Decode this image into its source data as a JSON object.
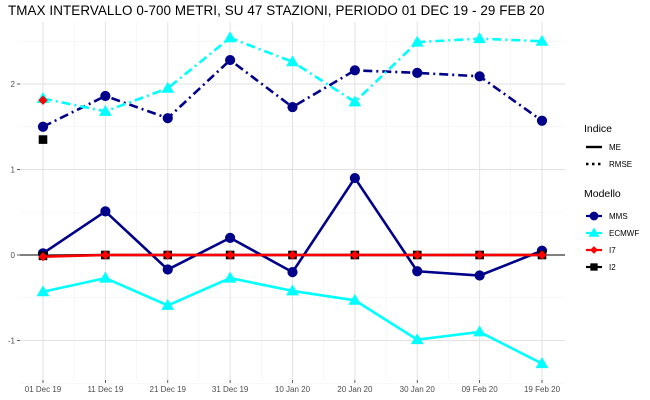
{
  "chart_data": {
    "type": "line",
    "title": "TMAX INTERVALLO 0-700 METRI, SU 47 STAZIONI, PERIODO 01 DEC 19  -  29 FEB 20",
    "xlabel": "",
    "ylabel": "",
    "categories": [
      "01 Dec 19",
      "11 Dec 19",
      "21 Dec 19",
      "31 Dec 19",
      "10 Jan 20",
      "20 Jan 20",
      "30 Jan 20",
      "09 Feb 20",
      "19 Feb 20"
    ],
    "ylim": [
      -1.45,
      2.6
    ],
    "yticks": [
      -1,
      0,
      1,
      2
    ],
    "grid": true,
    "zero_line": true,
    "legend_position": "right",
    "series": [
      {
        "modello": "MMS",
        "indice": "ME",
        "color": "#00008b",
        "marker": "circle",
        "values": [
          0.02,
          0.51,
          -0.17,
          0.2,
          -0.2,
          0.9,
          -0.19,
          -0.24,
          0.05
        ]
      },
      {
        "modello": "MMS",
        "indice": "RMSE",
        "color": "#00008b",
        "marker": "circle",
        "values": [
          1.5,
          1.86,
          1.6,
          2.28,
          1.73,
          2.16,
          2.13,
          2.09,
          1.57
        ]
      },
      {
        "modello": "ECMWF",
        "indice": "ME",
        "color": "#00ffff",
        "marker": "triangle",
        "values": [
          -0.43,
          -0.27,
          -0.59,
          -0.27,
          -0.42,
          -0.53,
          -0.99,
          -0.9,
          -1.27
        ]
      },
      {
        "modello": "ECMWF",
        "indice": "RMSE",
        "color": "#00ffff",
        "marker": "triangle",
        "values": [
          1.83,
          1.68,
          1.95,
          2.54,
          2.26,
          1.79,
          2.49,
          2.53,
          2.5
        ]
      },
      {
        "modello": "I2",
        "indice": "ME",
        "color": "#000000",
        "marker": "square",
        "values": [
          -0.01,
          0.0,
          0.0,
          0.0,
          0.0,
          0.0,
          0.0,
          0.0,
          0.0
        ]
      },
      {
        "modello": "I7",
        "indice": "ME",
        "color": "#ff0000",
        "marker": "diamond",
        "values": [
          -0.02,
          0.0,
          0.0,
          0.0,
          0.0,
          0.0,
          0.0,
          0.0,
          0.0
        ]
      }
    ],
    "extra_points": [
      {
        "modello": "I7",
        "category": "01 Dec 19",
        "value": 1.81,
        "color": "#ff0000",
        "marker": "diamond"
      },
      {
        "modello": "I2",
        "category": "01 Dec 19",
        "value": 1.35,
        "color": "#000000",
        "marker": "square"
      }
    ],
    "legend": {
      "indice_title": "Indice",
      "indice_items": [
        {
          "label": "ME",
          "style": "solid"
        },
        {
          "label": "RMSE",
          "style": "dotdash"
        }
      ],
      "modello_title": "Modello",
      "modello_items": [
        {
          "label": "MMS",
          "color": "#00008b",
          "marker": "circle"
        },
        {
          "label": "ECMWF",
          "color": "#00ffff",
          "marker": "triangle"
        },
        {
          "label": "I7",
          "color": "#ff0000",
          "marker": "diamond"
        },
        {
          "label": "I2",
          "color": "#000000",
          "marker": "square"
        }
      ]
    }
  }
}
